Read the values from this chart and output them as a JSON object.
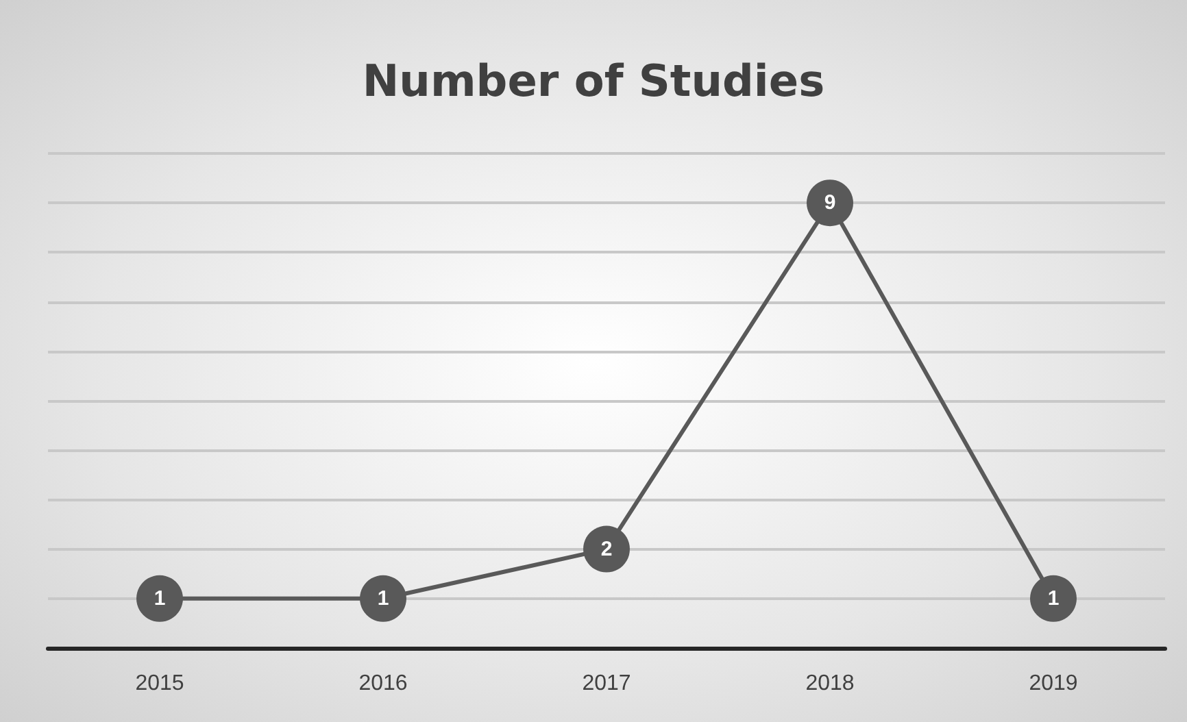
{
  "chart_data": {
    "type": "line",
    "title": "Number of Studies",
    "categories": [
      "2015",
      "2016",
      "2017",
      "2018",
      "2019"
    ],
    "series": [
      {
        "color": "#595959",
        "values": [
          1,
          1,
          2,
          9,
          1
        ]
      }
    ],
    "ylim": [
      0,
      10
    ],
    "yticks": [
      {
        "value": 0,
        "label": null
      },
      {
        "value": 1,
        "label": null
      },
      {
        "value": 2,
        "label": null
      },
      {
        "value": 3,
        "label": null
      },
      {
        "value": 4,
        "label": null
      },
      {
        "value": 5,
        "label": null
      },
      {
        "value": 6,
        "label": null
      },
      {
        "value": 7,
        "label": null
      },
      {
        "value": 8,
        "label": null
      },
      {
        "value": 9,
        "label": null
      },
      {
        "value": 10,
        "label": null
      }
    ],
    "grid": "y",
    "tick_labels": "x",
    "data_labels": true,
    "marker": "circle",
    "line_style": "solid"
  }
}
